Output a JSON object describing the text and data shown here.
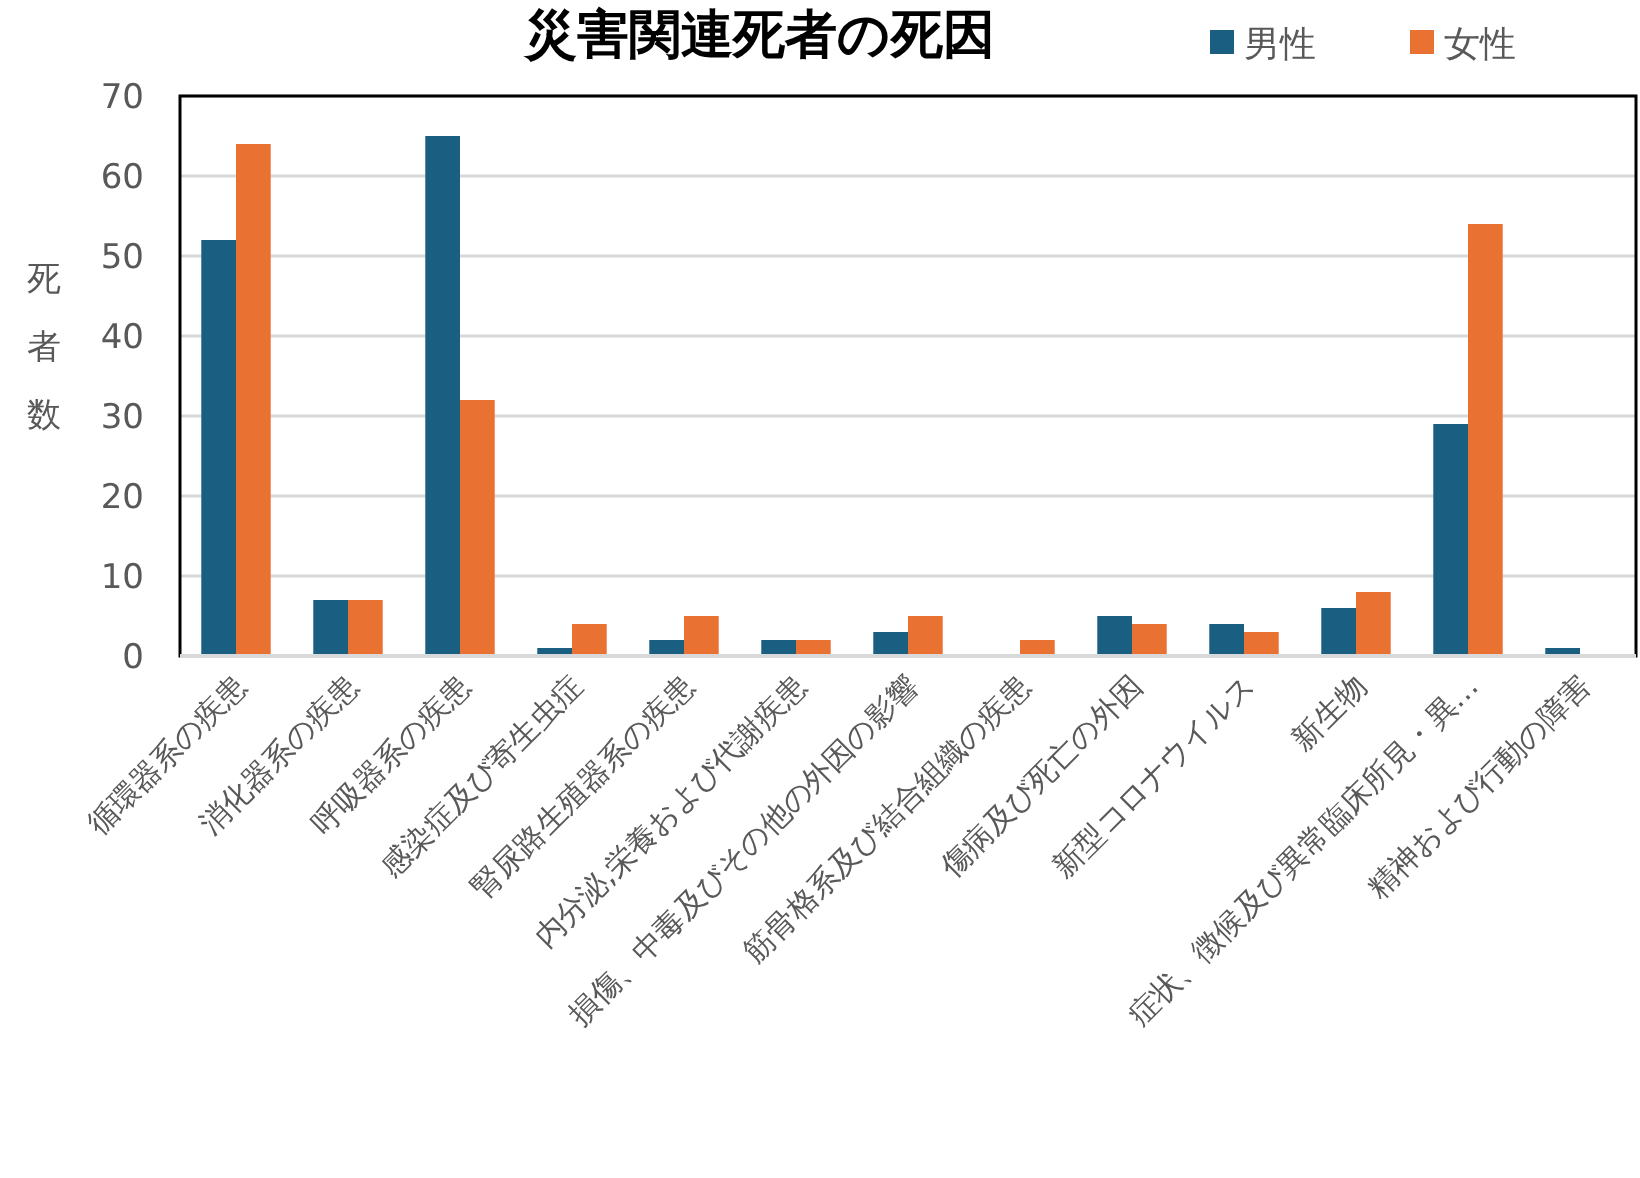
{
  "chart_data": {
    "type": "bar",
    "title": "災害関連死者の死因",
    "ylabel": "死者数",
    "categories": [
      "循環器系の疾患",
      "消化器系の疾患",
      "呼吸器系の疾患",
      "感染症及び寄生虫症",
      "腎尿路生殖器系の疾患",
      "内分泌,栄養および代謝疾患",
      "損傷、中毒及びその他の外因の影響",
      "筋骨格系及び結合組織の疾患",
      "傷病及び死亡の外因",
      "新型コロナウイルス",
      "新生物",
      "症状、徴候及び異常臨床所見・異…",
      "精神および行動の障害"
    ],
    "series": [
      {
        "name": "男性",
        "color": "#1a5f82",
        "values": [
          52,
          7,
          65,
          1,
          2,
          2,
          3,
          0,
          5,
          4,
          6,
          29,
          1
        ]
      },
      {
        "name": "女性",
        "color": "#e97132",
        "values": [
          64,
          7,
          32,
          4,
          5,
          2,
          5,
          2,
          4,
          3,
          8,
          54,
          0
        ]
      }
    ],
    "ylim": [
      0,
      70
    ],
    "yticks": [
      0,
      10,
      20,
      30,
      40,
      50,
      60,
      70
    ],
    "grid": "y",
    "legend": "top right"
  }
}
